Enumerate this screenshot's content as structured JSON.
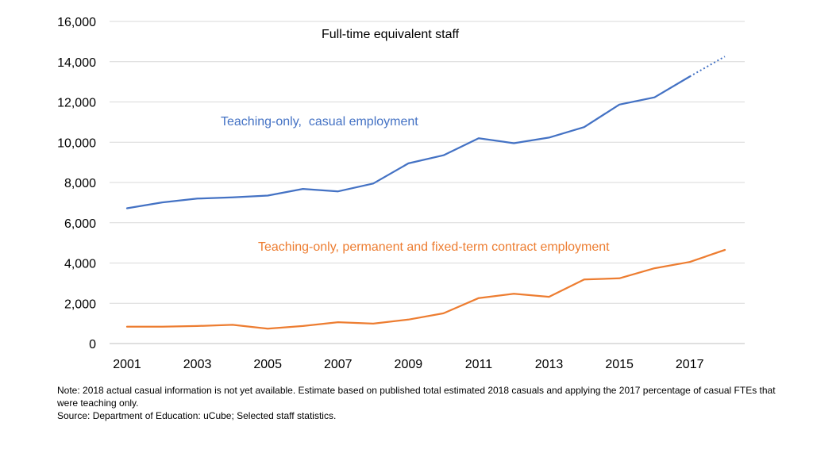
{
  "chart_data": {
    "type": "line",
    "title": "Full-time equivalent staff",
    "xlabel": "",
    "ylabel": "",
    "ylim": [
      0,
      16000
    ],
    "yticks": [
      0,
      2000,
      4000,
      6000,
      8000,
      10000,
      12000,
      14000,
      16000
    ],
    "ytick_labels": [
      "0",
      "2,000",
      "4,000",
      "6,000",
      "8,000",
      "10,000",
      "12,000",
      "14,000",
      "16,000"
    ],
    "xlim": [
      2001,
      2018
    ],
    "xticks": [
      2001,
      2003,
      2005,
      2007,
      2009,
      2011,
      2013,
      2015,
      2017
    ],
    "xtick_labels": [
      "2001",
      "2003",
      "2005",
      "2007",
      "2009",
      "2011",
      "2013",
      "2015",
      "2017"
    ],
    "grid": "horizontal",
    "series": [
      {
        "name": "Teaching-only,  casual employment",
        "color": "#4472C4",
        "x": [
          2001,
          2002,
          2003,
          2004,
          2005,
          2006,
          2007,
          2008,
          2009,
          2010,
          2011,
          2012,
          2013,
          2014,
          2015,
          2016,
          2017
        ],
        "values": [
          6720,
          7010,
          7200,
          7260,
          7350,
          7680,
          7560,
          7950,
          8950,
          9350,
          10200,
          9950,
          10230,
          10750,
          11870,
          12230,
          13260
        ],
        "estimate": {
          "x": [
            2017,
            2018
          ],
          "values": [
            13260,
            14260
          ],
          "style": "dotted"
        }
      },
      {
        "name": "Teaching-only, permanent and fixed-term contract employment",
        "color": "#ED7D31",
        "x": [
          2001,
          2002,
          2003,
          2004,
          2005,
          2006,
          2007,
          2008,
          2009,
          2010,
          2011,
          2012,
          2013,
          2014,
          2015,
          2016,
          2017,
          2018
        ],
        "values": [
          840,
          840,
          870,
          930,
          740,
          870,
          1060,
          990,
          1190,
          1500,
          2260,
          2470,
          2320,
          3180,
          3240,
          3740,
          4050,
          4650
        ]
      }
    ]
  },
  "notes": {
    "note": "Note: 2018 actual casual information is not yet available. Estimate based on published total estimated 2018 casuals and applying the 2017 percentage of casual FTEs that were teaching only.",
    "source": "Source: Department of Education: uCube; Selected staff statistics."
  }
}
